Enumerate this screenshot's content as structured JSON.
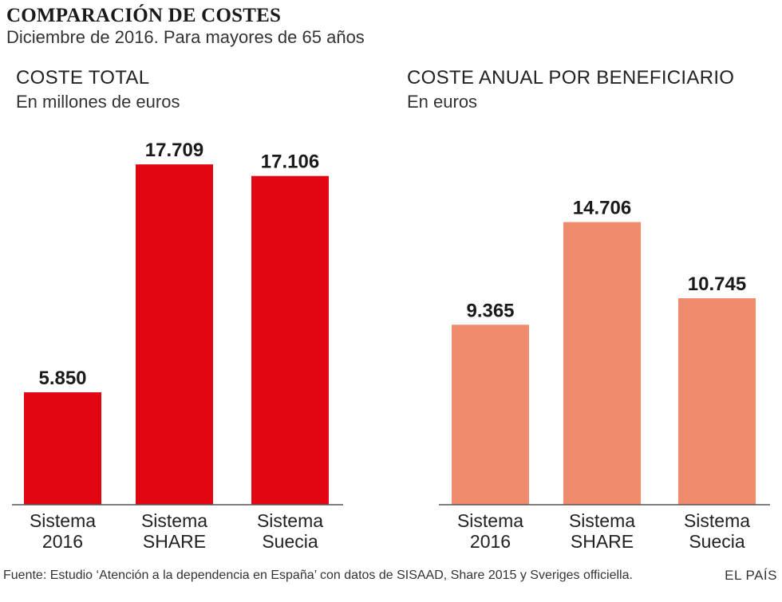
{
  "header": {
    "title": "COMPARACIÓN DE COSTES",
    "subtitle": "Diciembre de 2016. Para mayores de 65 años"
  },
  "chart_data": [
    {
      "type": "bar",
      "title": "COSTE TOTAL",
      "subtitle": "En millones de euros",
      "categories": [
        "Sistema\n2016",
        "Sistema\nSHARE",
        "Sistema\nSuecia"
      ],
      "values": [
        5850,
        17709,
        17106
      ],
      "value_labels": [
        "5.850",
        "17.709",
        "17.106"
      ],
      "ylim": [
        0,
        19500
      ],
      "color": "#e20613",
      "grid": false
    },
    {
      "type": "bar",
      "title": "COSTE ANUAL POR BENEFICIARIO",
      "subtitle": "En euros",
      "categories": [
        "Sistema\n2016",
        "Sistema\nSHARE",
        "Sistema\nSuecia"
      ],
      "values": [
        9365,
        14706,
        10745
      ],
      "value_labels": [
        "9.365",
        "14.706",
        "10.745"
      ],
      "ylim": [
        0,
        19500
      ],
      "color": "#f08c6e",
      "grid": false
    }
  ],
  "footer": {
    "source": "Fuente: Estudio ‘Atención a la dependencia en España’ con datos de SISAAD, Share 2015 y Sveriges officiella.",
    "brand": "EL PAÍS"
  }
}
